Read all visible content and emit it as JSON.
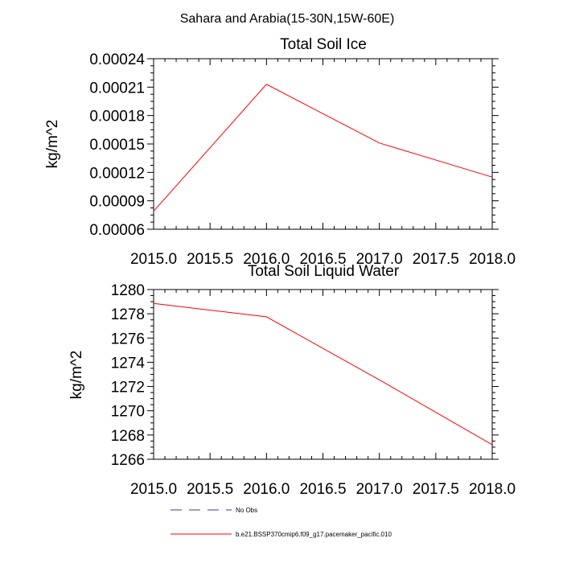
{
  "suptitle": "Sahara and Arabia(15-30N,15W-60E)",
  "colors": {
    "model": "#ff0000",
    "obs": "#3a3aa8",
    "axis": "#000000"
  },
  "chart_data": [
    {
      "type": "line",
      "title": "Total Soil Ice",
      "ylabel": "kg/m^2",
      "xlim": [
        2015.0,
        2018.0
      ],
      "ylim": [
        6e-05,
        0.00024
      ],
      "x_ticks": [
        "2015.0",
        "2015.5",
        "2016.0",
        "2016.5",
        "2017.0",
        "2017.5",
        "2018.0"
      ],
      "y_ticks": [
        "0.00006",
        "0.00009",
        "0.00012",
        "0.00015",
        "0.00018",
        "0.00021",
        "0.00024"
      ],
      "series": [
        {
          "name": "b.e21.BSSP370cmip6.f09_g17.pacemaker_pacific.010",
          "x": [
            2015,
            2016,
            2017,
            2018
          ],
          "y": [
            7.9e-05,
            0.000213,
            0.000151,
            0.000115
          ]
        }
      ]
    },
    {
      "type": "line",
      "title": "Total Soil Liquid Water",
      "ylabel": "kg/m^2",
      "xlim": [
        2015.0,
        2018.0
      ],
      "ylim": [
        1266,
        1280
      ],
      "x_ticks": [
        "2015.0",
        "2015.5",
        "2016.0",
        "2016.5",
        "2017.0",
        "2017.5",
        "2018.0"
      ],
      "y_ticks": [
        "1266",
        "1268",
        "1270",
        "1272",
        "1274",
        "1276",
        "1278",
        "1280"
      ],
      "series": [
        {
          "name": "b.e21.BSSP370cmip6.f09_g17.pacemaker_pacific.010",
          "x": [
            2015,
            2016,
            2017,
            2018
          ],
          "y": [
            1278.85,
            1277.75,
            1272.55,
            1267.2
          ]
        }
      ]
    }
  ],
  "legend": {
    "placement": "bottom",
    "items": [
      {
        "label": "No Obs",
        "style": "dashed"
      },
      {
        "label": "b.e21.BSSP370cmip6.f09_g17.pacemaker_pacific.010",
        "style": "solid"
      }
    ]
  }
}
